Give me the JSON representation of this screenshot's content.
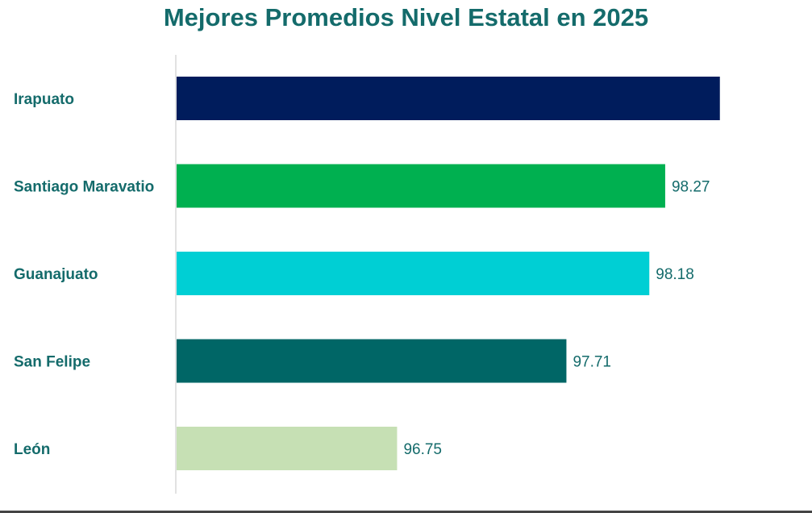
{
  "chart_data": {
    "type": "bar",
    "orientation": "horizontal",
    "title": "Mejores Promedios Nivel Estatal en 2025",
    "categories": [
      "Irapuato",
      "Santiago Maravatio",
      "Guanajuato",
      "San Felipe",
      "León"
    ],
    "values": [
      98.58,
      98.27,
      98.18,
      97.71,
      96.75
    ],
    "data_labels": [
      null,
      "98.27",
      "98.18",
      "97.71",
      "96.75"
    ],
    "colors": [
      "#001c5c",
      "#00b050",
      "#00cfd4",
      "#006666",
      "#c6e0b4"
    ],
    "xlim": [
      95.5,
      98.6
    ],
    "grid": false,
    "legend": "none",
    "xlabel": "",
    "ylabel": ""
  }
}
